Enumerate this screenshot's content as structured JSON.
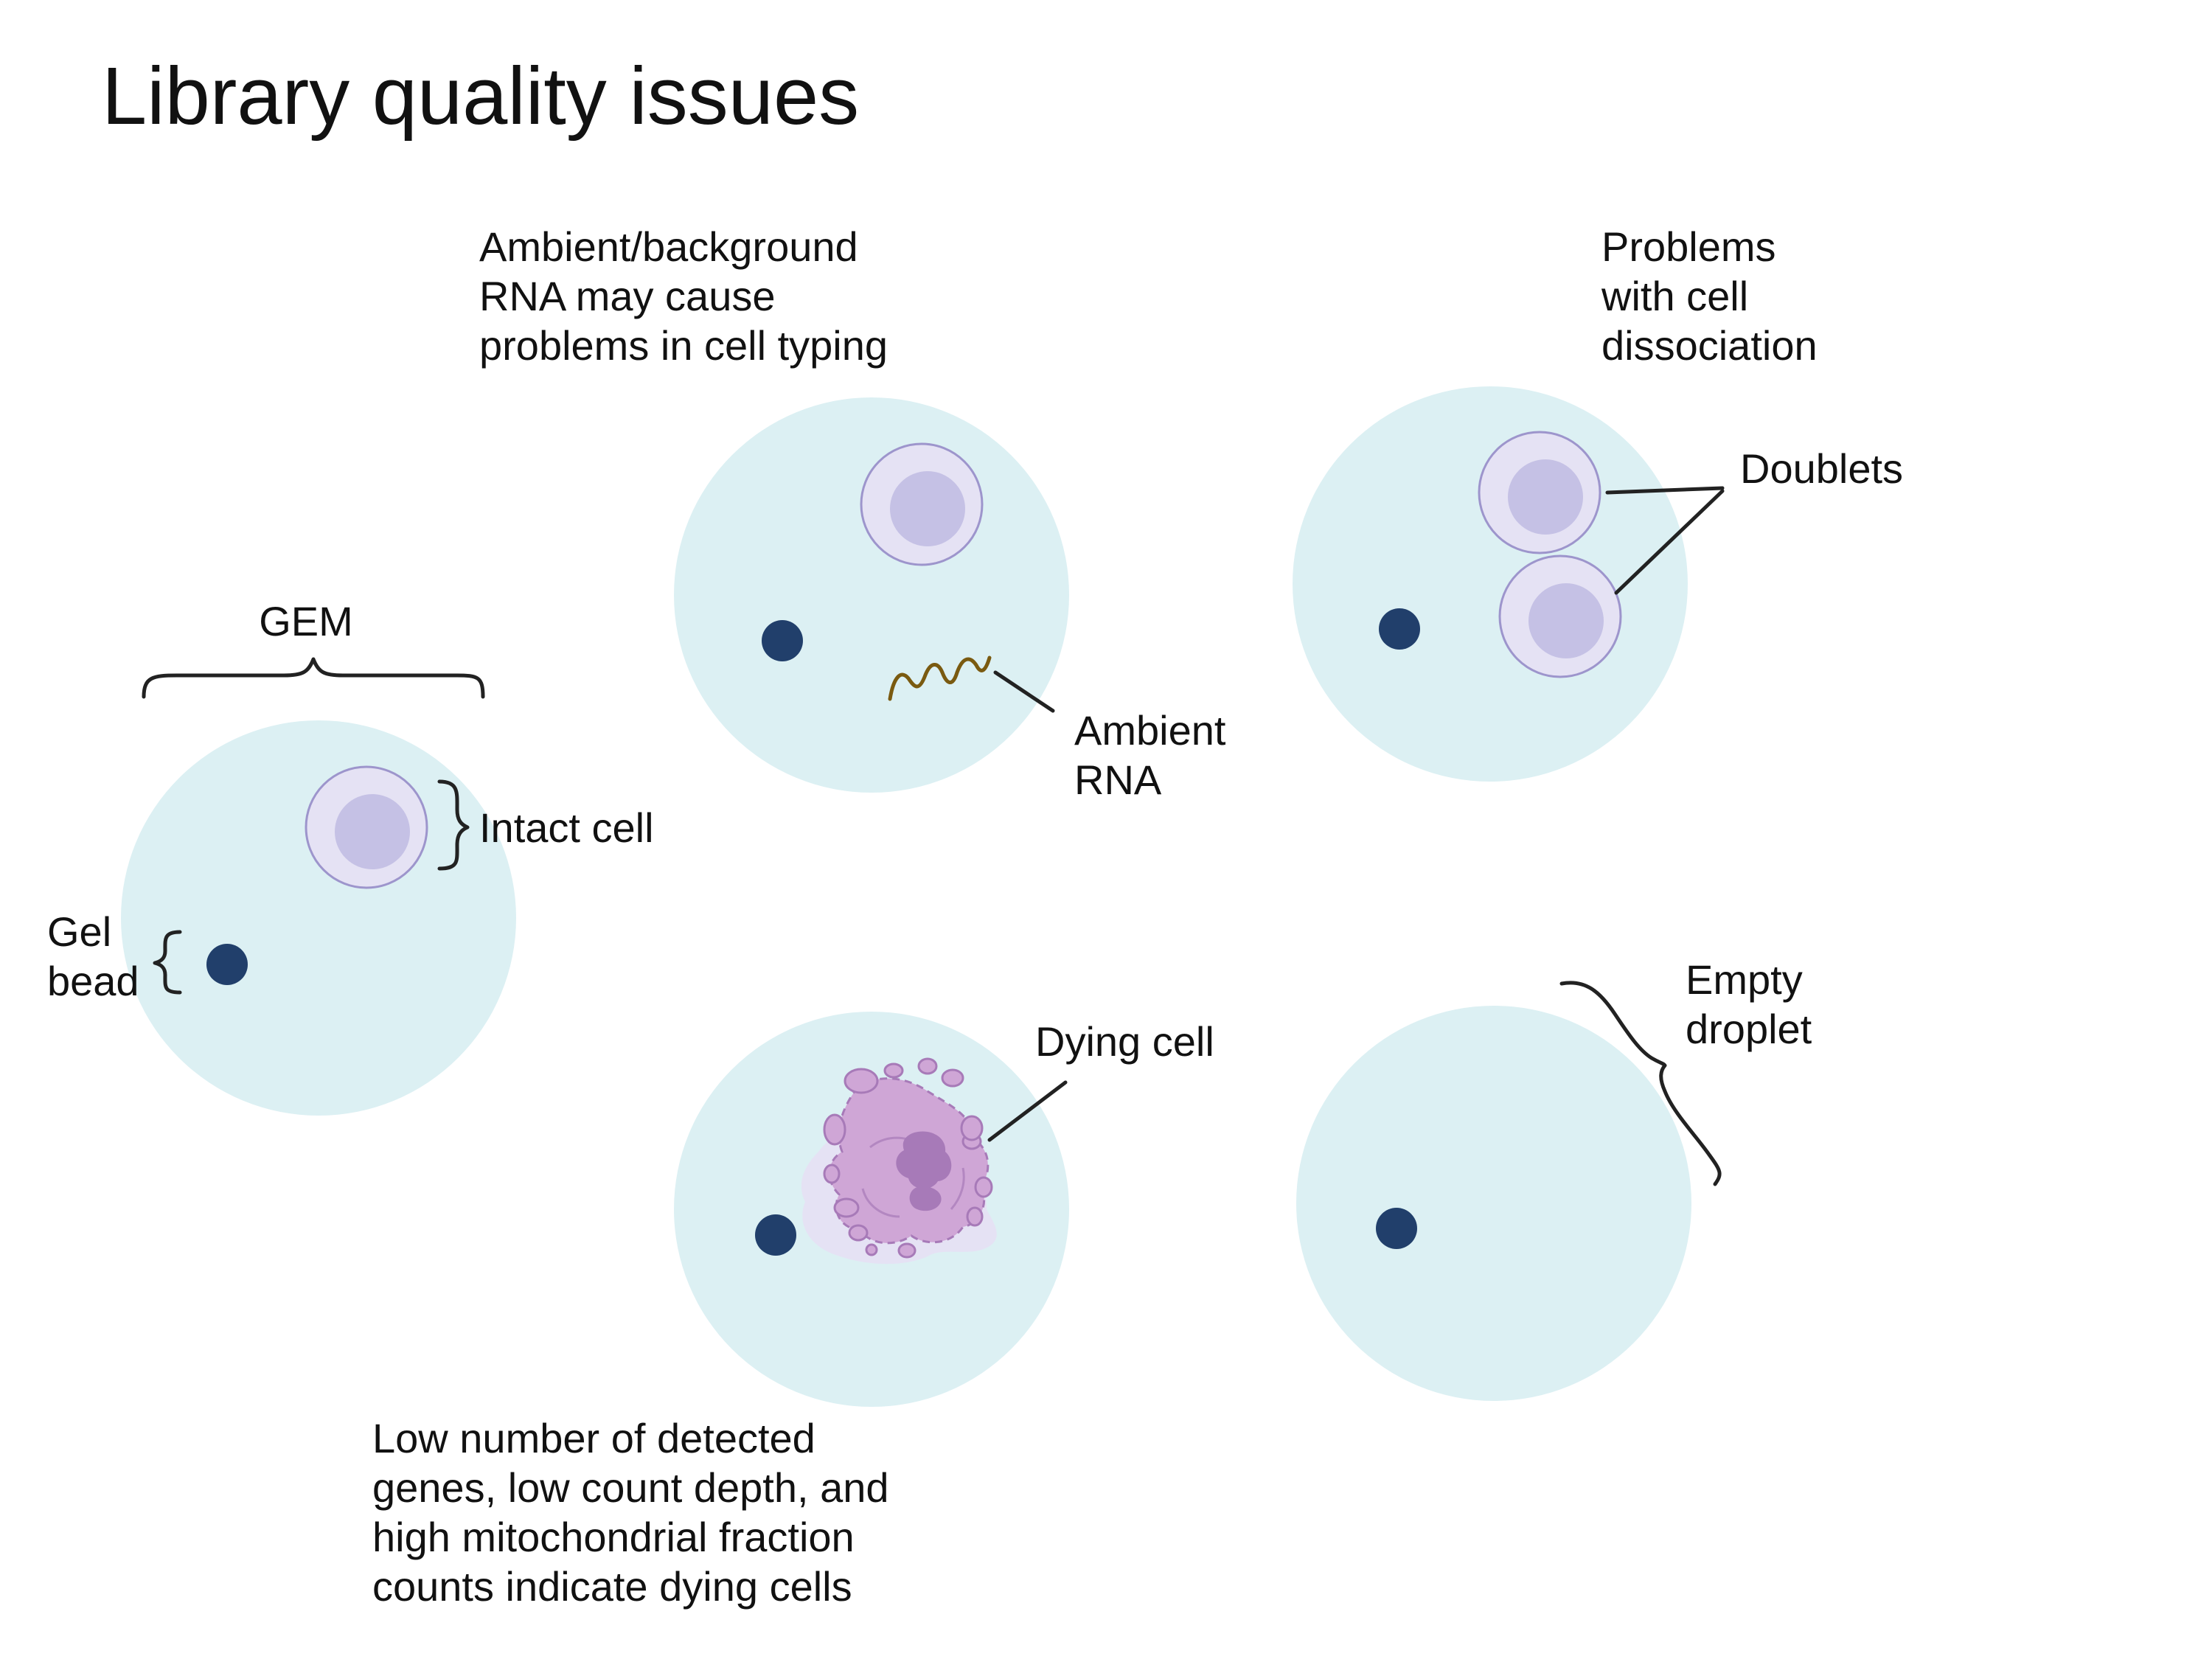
{
  "title": "Library quality issues",
  "labels": {
    "gem": "GEM",
    "intact_cell": "Intact cell",
    "gel_bead": [
      "Gel",
      "bead"
    ],
    "ambient_caption": [
      "Ambient/background",
      "RNA may cause",
      "problems in cell typing"
    ],
    "ambient_rna": [
      "Ambient",
      "RNA"
    ],
    "dissociation_caption": [
      "Problems",
      "with cell",
      "dissociation"
    ],
    "doublets": "Doublets",
    "dying_cell": "Dying cell",
    "dying_caption": [
      "Low number of detected",
      "genes, low count depth, and",
      "high mitochondrial fraction",
      "counts indicate dying cells"
    ],
    "empty_droplet": [
      "Empty",
      "droplet"
    ]
  },
  "colors": {
    "droplet": "#dcf0f3",
    "gel_bead": "#213f6b",
    "cell_outer": "#e5e2f4",
    "cell_inner": "#c5c1e5",
    "cell_stroke": "#9d95cc",
    "ambient_rna": "#7a5a10",
    "dying_cell": "#cfa6d6",
    "dying_core": "#a77ab8"
  }
}
